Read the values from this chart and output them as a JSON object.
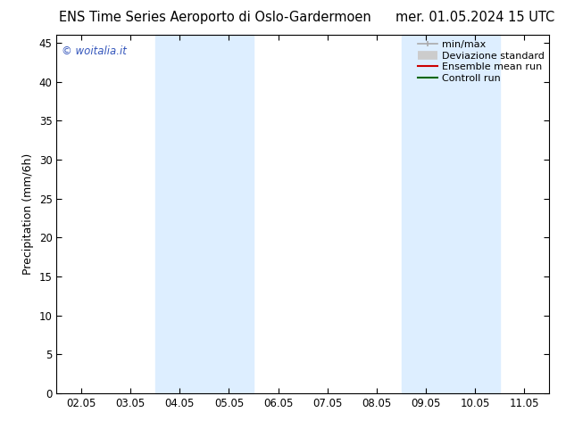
{
  "title_left": "ENS Time Series Aeroporto di Oslo-Gardermoen",
  "title_right": "mer. 01.05.2024 15 UTC",
  "ylabel": "Precipitation (mm/6h)",
  "ylim": [
    0,
    46
  ],
  "yticks": [
    0,
    5,
    10,
    15,
    20,
    25,
    30,
    35,
    40,
    45
  ],
  "xtick_labels": [
    "02.05",
    "03.05",
    "04.05",
    "05.05",
    "06.05",
    "07.05",
    "08.05",
    "09.05",
    "10.05",
    "11.05"
  ],
  "shade_bands": [
    {
      "xstart": 2,
      "xend": 4
    },
    {
      "xstart": 7,
      "xend": 9
    }
  ],
  "shade_color": "#ddeeff",
  "watermark": "© woitalia.it",
  "watermark_color": "#3355bb",
  "legend_items": [
    {
      "label": "min/max",
      "color": "#aaaaaa",
      "lw": 1.2
    },
    {
      "label": "Deviazione standard",
      "color": "#cccccc",
      "lw": 7
    },
    {
      "label": "Ensemble mean run",
      "color": "#cc0000",
      "lw": 1.5
    },
    {
      "label": "Controll run",
      "color": "#006600",
      "lw": 1.5
    }
  ],
  "bg_color": "#ffffff",
  "title_fontsize": 10.5,
  "tick_fontsize": 8.5,
  "ylabel_fontsize": 9,
  "legend_fontsize": 8
}
